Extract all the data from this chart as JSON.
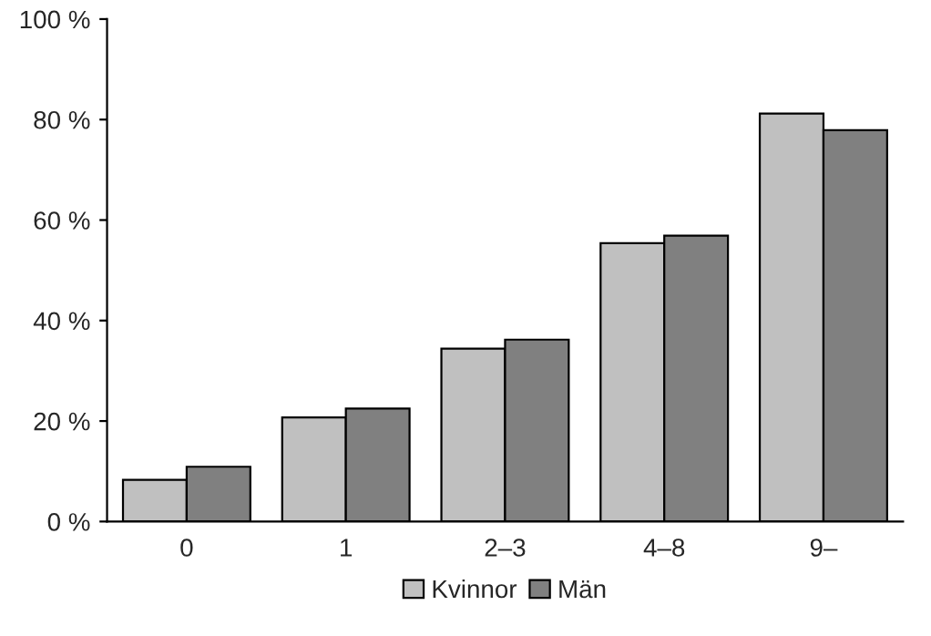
{
  "chart_data": {
    "type": "bar",
    "categories": [
      "0",
      "1",
      "2–3",
      "4–8",
      "9–"
    ],
    "series": [
      {
        "name": "Kvinnor",
        "color": "#c0c0c0",
        "values": [
          8.3,
          20.7,
          34.4,
          55.4,
          81.2
        ]
      },
      {
        "name": "Män",
        "color": "#808080",
        "values": [
          10.9,
          22.5,
          36.2,
          56.9,
          77.9
        ]
      }
    ],
    "ylim": [
      0,
      100
    ],
    "yticks": [
      {
        "value": 0,
        "label": "0 %"
      },
      {
        "value": 20,
        "label": "20 %"
      },
      {
        "value": 40,
        "label": "40 %"
      },
      {
        "value": 60,
        "label": "60 %"
      },
      {
        "value": 80,
        "label": "80 %"
      },
      {
        "value": 100,
        "label": "100 %"
      }
    ],
    "grid": false,
    "legend": "bottom"
  }
}
